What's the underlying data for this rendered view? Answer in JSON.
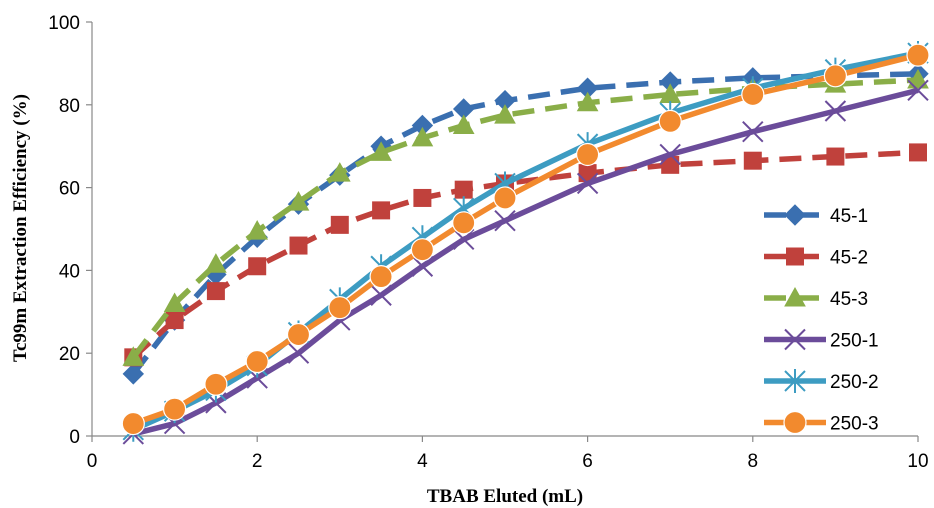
{
  "chart_data": {
    "type": "line",
    "xlabel": "TBAB Eluted (mL)",
    "ylabel": "Tc99m Extraction Efficiency (%)",
    "xlim": [
      0,
      10
    ],
    "ylim": [
      0,
      100
    ],
    "xticks": [
      "0",
      "2",
      "4",
      "6",
      "8",
      "10"
    ],
    "yticks": [
      "0",
      "20",
      "40",
      "60",
      "80",
      "100"
    ],
    "grid": false,
    "legend_position": "right",
    "x": [
      0.5,
      1,
      1.5,
      2,
      2.5,
      3,
      3.5,
      4,
      4.5,
      5,
      6,
      7,
      8,
      9,
      10
    ],
    "series": [
      {
        "name": "45-1",
        "color": "#3A6FB0",
        "dash": true,
        "marker": "diamond",
        "values": [
          15,
          28,
          39,
          48,
          56,
          63,
          70,
          75,
          79,
          81,
          84,
          85.5,
          86.5,
          87,
          87.5
        ]
      },
      {
        "name": "45-2",
        "color": "#C0413C",
        "dash": true,
        "marker": "square",
        "values": [
          19,
          28,
          35,
          41,
          46,
          51,
          54.5,
          57.5,
          59.5,
          61,
          63.5,
          65.5,
          66.5,
          67.5,
          68.5
        ]
      },
      {
        "name": "45-3",
        "color": "#8AAE48",
        "dash": true,
        "marker": "triangle",
        "values": [
          19,
          32,
          41.5,
          49.5,
          56.5,
          63.5,
          68.5,
          72,
          75,
          77.5,
          80.5,
          82.5,
          84,
          85,
          86
        ]
      },
      {
        "name": "250-1",
        "color": "#6B4C9A",
        "dash": false,
        "marker": "x",
        "values": [
          0.5,
          3,
          8,
          14,
          20,
          28,
          34,
          41,
          47.5,
          52,
          61,
          68,
          73.5,
          78.5,
          83.5
        ]
      },
      {
        "name": "250-2",
        "color": "#3D9CC2",
        "dash": false,
        "marker": "star",
        "values": [
          1.5,
          6,
          11,
          17,
          25,
          33,
          41,
          48,
          55,
          61,
          70.5,
          78,
          84,
          88.5,
          92.5
        ]
      },
      {
        "name": "250-3",
        "color": "#F28A2E",
        "dash": false,
        "marker": "circle",
        "values": [
          3,
          6.5,
          12.5,
          18,
          24.5,
          31,
          38.5,
          45,
          51.5,
          57.5,
          68,
          76,
          82.5,
          87,
          92
        ]
      }
    ]
  }
}
